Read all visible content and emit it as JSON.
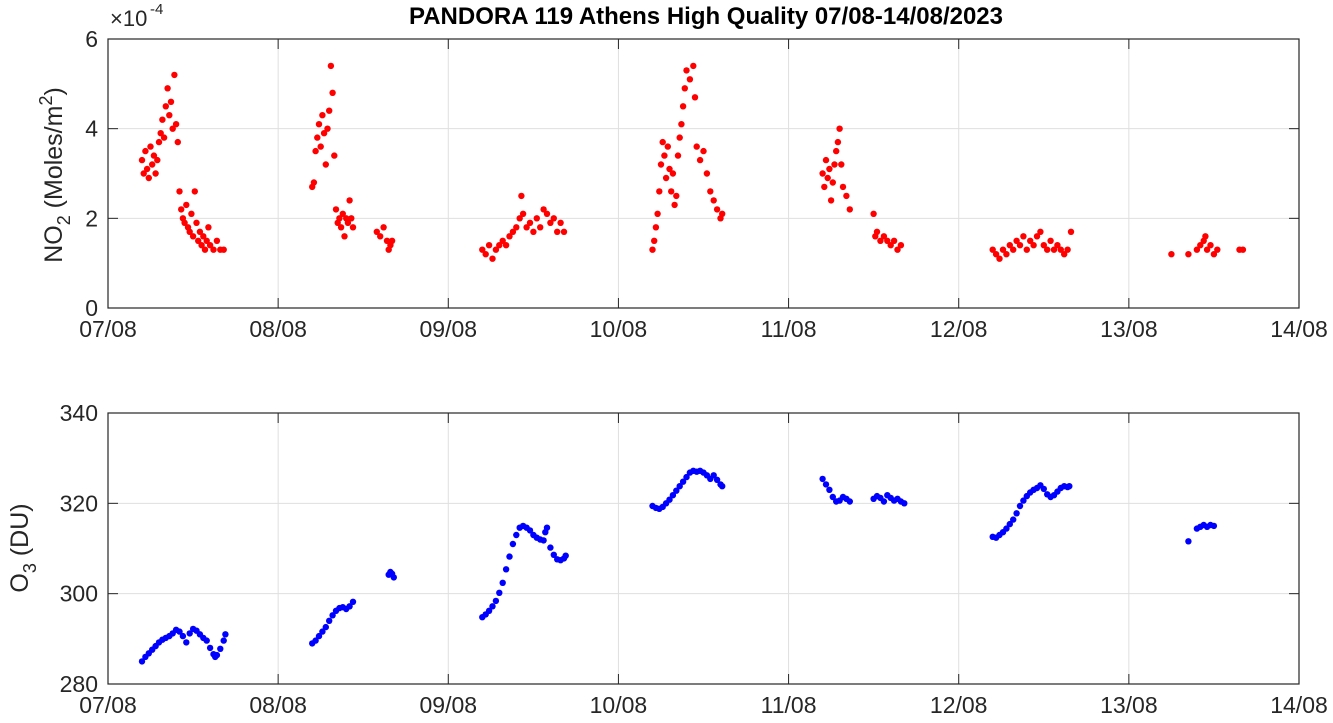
{
  "chart_data": [
    {
      "type": "scatter",
      "title": "PANDORA 119 Athens High Quality 07/08-14/08/2023",
      "ylabel_main": "NO",
      "ylabel_sub": "2",
      "ylabel_unit_pre": " (Moles/m",
      "ylabel_unit_sup": "2",
      "ylabel_unit_post": ")",
      "exponent_base": "×10",
      "exponent_power": "-4",
      "x_tick_labels": [
        "07/08",
        "08/08",
        "09/08",
        "10/08",
        "11/08",
        "12/08",
        "13/08",
        "14/08"
      ],
      "xlim": [
        0,
        7
      ],
      "ylim": [
        0,
        6
      ],
      "y_tick_labels": [
        "0",
        "2",
        "4",
        "6"
      ],
      "grid": true,
      "marker_color": "#ff0000",
      "x_units": "days since 07/08",
      "y_units": "×10^-4 Moles/m^2",
      "points": [
        [
          0.2,
          3.3
        ],
        [
          0.21,
          3.0
        ],
        [
          0.22,
          3.5
        ],
        [
          0.23,
          3.1
        ],
        [
          0.24,
          2.9
        ],
        [
          0.25,
          3.6
        ],
        [
          0.26,
          3.2
        ],
        [
          0.27,
          3.4
        ],
        [
          0.28,
          3.0
        ],
        [
          0.29,
          3.3
        ],
        [
          0.3,
          3.7
        ],
        [
          0.31,
          3.9
        ],
        [
          0.32,
          4.2
        ],
        [
          0.33,
          3.8
        ],
        [
          0.34,
          4.5
        ],
        [
          0.35,
          4.9
        ],
        [
          0.36,
          4.3
        ],
        [
          0.37,
          4.6
        ],
        [
          0.38,
          4.0
        ],
        [
          0.39,
          5.2
        ],
        [
          0.4,
          4.1
        ],
        [
          0.41,
          3.7
        ],
        [
          0.42,
          2.6
        ],
        [
          0.43,
          2.2
        ],
        [
          0.44,
          2.0
        ],
        [
          0.45,
          1.9
        ],
        [
          0.46,
          2.3
        ],
        [
          0.47,
          1.8
        ],
        [
          0.48,
          1.7
        ],
        [
          0.49,
          2.1
        ],
        [
          0.5,
          1.6
        ],
        [
          0.51,
          2.6
        ],
        [
          0.52,
          1.9
        ],
        [
          0.53,
          1.5
        ],
        [
          0.54,
          1.7
        ],
        [
          0.55,
          1.4
        ],
        [
          0.56,
          1.6
        ],
        [
          0.57,
          1.3
        ],
        [
          0.58,
          1.5
        ],
        [
          0.59,
          1.8
        ],
        [
          0.6,
          1.4
        ],
        [
          0.62,
          1.3
        ],
        [
          0.64,
          1.5
        ],
        [
          0.66,
          1.3
        ],
        [
          0.68,
          1.3
        ],
        [
          1.2,
          2.7
        ],
        [
          1.21,
          2.8
        ],
        [
          1.22,
          3.5
        ],
        [
          1.23,
          3.8
        ],
        [
          1.24,
          4.1
        ],
        [
          1.25,
          3.6
        ],
        [
          1.26,
          4.3
        ],
        [
          1.27,
          3.9
        ],
        [
          1.28,
          3.2
        ],
        [
          1.29,
          4.0
        ],
        [
          1.3,
          4.4
        ],
        [
          1.31,
          5.4
        ],
        [
          1.32,
          4.8
        ],
        [
          1.33,
          3.4
        ],
        [
          1.34,
          2.2
        ],
        [
          1.35,
          1.9
        ],
        [
          1.36,
          2.0
        ],
        [
          1.37,
          1.8
        ],
        [
          1.38,
          2.1
        ],
        [
          1.39,
          1.6
        ],
        [
          1.4,
          2.0
        ],
        [
          1.41,
          1.9
        ],
        [
          1.42,
          2.4
        ],
        [
          1.43,
          2.0
        ],
        [
          1.44,
          1.8
        ],
        [
          1.58,
          1.7
        ],
        [
          1.6,
          1.6
        ],
        [
          1.62,
          1.8
        ],
        [
          1.64,
          1.5
        ],
        [
          1.65,
          1.3
        ],
        [
          1.66,
          1.4
        ],
        [
          1.67,
          1.5
        ],
        [
          2.2,
          1.3
        ],
        [
          2.22,
          1.2
        ],
        [
          2.24,
          1.4
        ],
        [
          2.26,
          1.1
        ],
        [
          2.28,
          1.3
        ],
        [
          2.3,
          1.4
        ],
        [
          2.32,
          1.5
        ],
        [
          2.34,
          1.4
        ],
        [
          2.36,
          1.6
        ],
        [
          2.38,
          1.7
        ],
        [
          2.4,
          1.8
        ],
        [
          2.42,
          2.0
        ],
        [
          2.43,
          2.5
        ],
        [
          2.44,
          2.1
        ],
        [
          2.46,
          1.8
        ],
        [
          2.48,
          1.9
        ],
        [
          2.5,
          1.7
        ],
        [
          2.52,
          2.0
        ],
        [
          2.54,
          1.8
        ],
        [
          2.56,
          2.2
        ],
        [
          2.58,
          2.1
        ],
        [
          2.6,
          1.9
        ],
        [
          2.62,
          2.0
        ],
        [
          2.64,
          1.7
        ],
        [
          2.66,
          1.9
        ],
        [
          2.68,
          1.7
        ],
        [
          3.2,
          1.3
        ],
        [
          3.21,
          1.5
        ],
        [
          3.22,
          1.8
        ],
        [
          3.23,
          2.1
        ],
        [
          3.24,
          2.6
        ],
        [
          3.25,
          3.2
        ],
        [
          3.26,
          3.7
        ],
        [
          3.27,
          3.4
        ],
        [
          3.28,
          2.9
        ],
        [
          3.29,
          3.6
        ],
        [
          3.3,
          3.1
        ],
        [
          3.31,
          2.6
        ],
        [
          3.32,
          3.0
        ],
        [
          3.33,
          2.3
        ],
        [
          3.34,
          2.5
        ],
        [
          3.35,
          3.4
        ],
        [
          3.36,
          3.8
        ],
        [
          3.37,
          4.1
        ],
        [
          3.38,
          4.5
        ],
        [
          3.39,
          4.9
        ],
        [
          3.4,
          5.3
        ],
        [
          3.42,
          5.1
        ],
        [
          3.44,
          5.4
        ],
        [
          3.45,
          4.7
        ],
        [
          3.46,
          3.6
        ],
        [
          3.48,
          3.3
        ],
        [
          3.5,
          3.5
        ],
        [
          3.52,
          3.0
        ],
        [
          3.54,
          2.6
        ],
        [
          3.56,
          2.4
        ],
        [
          3.58,
          2.2
        ],
        [
          3.6,
          2.0
        ],
        [
          3.61,
          2.1
        ],
        [
          4.2,
          3.0
        ],
        [
          4.21,
          2.7
        ],
        [
          4.22,
          3.3
        ],
        [
          4.23,
          2.9
        ],
        [
          4.24,
          3.1
        ],
        [
          4.25,
          2.4
        ],
        [
          4.26,
          2.8
        ],
        [
          4.27,
          3.2
        ],
        [
          4.28,
          3.5
        ],
        [
          4.29,
          3.7
        ],
        [
          4.3,
          4.0
        ],
        [
          4.31,
          3.2
        ],
        [
          4.32,
          2.7
        ],
        [
          4.34,
          2.5
        ],
        [
          4.36,
          2.2
        ],
        [
          4.5,
          2.1
        ],
        [
          4.51,
          1.6
        ],
        [
          4.52,
          1.7
        ],
        [
          4.54,
          1.5
        ],
        [
          4.56,
          1.6
        ],
        [
          4.58,
          1.5
        ],
        [
          4.6,
          1.4
        ],
        [
          4.62,
          1.5
        ],
        [
          4.64,
          1.3
        ],
        [
          4.66,
          1.4
        ],
        [
          5.2,
          1.3
        ],
        [
          5.22,
          1.2
        ],
        [
          5.24,
          1.1
        ],
        [
          5.26,
          1.3
        ],
        [
          5.28,
          1.2
        ],
        [
          5.3,
          1.4
        ],
        [
          5.32,
          1.3
        ],
        [
          5.34,
          1.5
        ],
        [
          5.36,
          1.4
        ],
        [
          5.38,
          1.6
        ],
        [
          5.4,
          1.3
        ],
        [
          5.42,
          1.5
        ],
        [
          5.44,
          1.4
        ],
        [
          5.46,
          1.6
        ],
        [
          5.48,
          1.7
        ],
        [
          5.5,
          1.4
        ],
        [
          5.52,
          1.3
        ],
        [
          5.54,
          1.5
        ],
        [
          5.56,
          1.3
        ],
        [
          5.58,
          1.4
        ],
        [
          5.6,
          1.3
        ],
        [
          5.62,
          1.2
        ],
        [
          5.64,
          1.3
        ],
        [
          5.66,
          1.7
        ],
        [
          6.25,
          1.2
        ],
        [
          6.35,
          1.2
        ],
        [
          6.4,
          1.3
        ],
        [
          6.42,
          1.4
        ],
        [
          6.44,
          1.5
        ],
        [
          6.45,
          1.6
        ],
        [
          6.46,
          1.3
        ],
        [
          6.48,
          1.4
        ],
        [
          6.5,
          1.2
        ],
        [
          6.52,
          1.3
        ],
        [
          6.65,
          1.3
        ],
        [
          6.67,
          1.3
        ]
      ]
    },
    {
      "type": "scatter",
      "ylabel_main": "O",
      "ylabel_sub": "3",
      "ylabel_unit_pre": " (DU)",
      "x_tick_labels": [
        "07/08",
        "08/08",
        "09/08",
        "10/08",
        "11/08",
        "12/08",
        "13/08",
        "14/08"
      ],
      "xlim": [
        0,
        7
      ],
      "ylim": [
        280,
        340
      ],
      "y_tick_labels": [
        "280",
        "300",
        "320",
        "340"
      ],
      "grid": true,
      "marker_color": "#0000ff",
      "x_units": "days since 07/08",
      "y_units": "DU",
      "points": [
        [
          0.2,
          285.0
        ],
        [
          0.22,
          286.0
        ],
        [
          0.24,
          286.8
        ],
        [
          0.26,
          287.6
        ],
        [
          0.28,
          288.4
        ],
        [
          0.3,
          289.2
        ],
        [
          0.32,
          289.8
        ],
        [
          0.34,
          290.2
        ],
        [
          0.36,
          290.6
        ],
        [
          0.38,
          291.2
        ],
        [
          0.4,
          292.0
        ],
        [
          0.42,
          291.6
        ],
        [
          0.44,
          290.6
        ],
        [
          0.46,
          289.2
        ],
        [
          0.48,
          291.2
        ],
        [
          0.5,
          292.2
        ],
        [
          0.52,
          291.8
        ],
        [
          0.54,
          291.0
        ],
        [
          0.56,
          290.2
        ],
        [
          0.58,
          289.6
        ],
        [
          0.6,
          288.0
        ],
        [
          0.62,
          286.6
        ],
        [
          0.63,
          286.0
        ],
        [
          0.64,
          286.4
        ],
        [
          0.66,
          287.8
        ],
        [
          0.68,
          289.6
        ],
        [
          0.69,
          291.0
        ],
        [
          1.2,
          289.0
        ],
        [
          1.22,
          289.6
        ],
        [
          1.24,
          290.6
        ],
        [
          1.26,
          291.6
        ],
        [
          1.28,
          292.6
        ],
        [
          1.3,
          294.0
        ],
        [
          1.32,
          295.2
        ],
        [
          1.34,
          296.2
        ],
        [
          1.36,
          296.8
        ],
        [
          1.38,
          297.0
        ],
        [
          1.4,
          296.6
        ],
        [
          1.42,
          297.2
        ],
        [
          1.44,
          298.2
        ],
        [
          1.65,
          304.2
        ],
        [
          1.66,
          304.8
        ],
        [
          1.67,
          304.4
        ],
        [
          1.68,
          303.6
        ],
        [
          2.2,
          294.8
        ],
        [
          2.22,
          295.4
        ],
        [
          2.24,
          296.2
        ],
        [
          2.26,
          297.2
        ],
        [
          2.28,
          298.4
        ],
        [
          2.3,
          300.2
        ],
        [
          2.32,
          302.4
        ],
        [
          2.34,
          305.4
        ],
        [
          2.36,
          308.2
        ],
        [
          2.38,
          311.0
        ],
        [
          2.4,
          313.0
        ],
        [
          2.42,
          314.6
        ],
        [
          2.44,
          315.0
        ],
        [
          2.46,
          314.6
        ],
        [
          2.48,
          314.0
        ],
        [
          2.5,
          313.0
        ],
        [
          2.52,
          312.4
        ],
        [
          2.54,
          312.0
        ],
        [
          2.56,
          311.8
        ],
        [
          2.57,
          313.6
        ],
        [
          2.58,
          314.6
        ],
        [
          2.6,
          310.2
        ],
        [
          2.62,
          308.6
        ],
        [
          2.64,
          307.6
        ],
        [
          2.66,
          307.4
        ],
        [
          2.68,
          307.8
        ],
        [
          2.69,
          308.4
        ],
        [
          3.2,
          319.4
        ],
        [
          3.22,
          319.0
        ],
        [
          3.24,
          318.8
        ],
        [
          3.26,
          319.2
        ],
        [
          3.28,
          320.0
        ],
        [
          3.3,
          320.8
        ],
        [
          3.32,
          321.8
        ],
        [
          3.34,
          322.8
        ],
        [
          3.36,
          323.8
        ],
        [
          3.38,
          324.8
        ],
        [
          3.4,
          325.8
        ],
        [
          3.42,
          326.8
        ],
        [
          3.44,
          327.2
        ],
        [
          3.46,
          327.0
        ],
        [
          3.48,
          327.2
        ],
        [
          3.5,
          326.8
        ],
        [
          3.52,
          326.2
        ],
        [
          3.54,
          325.4
        ],
        [
          3.56,
          326.2
        ],
        [
          3.58,
          325.2
        ],
        [
          3.6,
          324.2
        ],
        [
          3.61,
          323.8
        ],
        [
          4.2,
          325.4
        ],
        [
          4.22,
          324.2
        ],
        [
          4.24,
          323.0
        ],
        [
          4.26,
          321.4
        ],
        [
          4.28,
          320.4
        ],
        [
          4.3,
          320.6
        ],
        [
          4.32,
          321.4
        ],
        [
          4.34,
          321.0
        ],
        [
          4.36,
          320.4
        ],
        [
          4.5,
          321.0
        ],
        [
          4.52,
          321.6
        ],
        [
          4.54,
          321.2
        ],
        [
          4.56,
          320.4
        ],
        [
          4.58,
          321.8
        ],
        [
          4.6,
          321.2
        ],
        [
          4.62,
          320.6
        ],
        [
          4.64,
          321.0
        ],
        [
          4.66,
          320.4
        ],
        [
          4.68,
          320.0
        ],
        [
          5.2,
          312.6
        ],
        [
          5.22,
          312.4
        ],
        [
          5.24,
          313.0
        ],
        [
          5.26,
          313.6
        ],
        [
          5.28,
          314.4
        ],
        [
          5.3,
          315.4
        ],
        [
          5.32,
          316.4
        ],
        [
          5.34,
          317.8
        ],
        [
          5.36,
          319.4
        ],
        [
          5.38,
          320.6
        ],
        [
          5.4,
          321.6
        ],
        [
          5.42,
          322.4
        ],
        [
          5.44,
          323.0
        ],
        [
          5.46,
          323.4
        ],
        [
          5.48,
          324.0
        ],
        [
          5.5,
          323.2
        ],
        [
          5.52,
          322.0
        ],
        [
          5.54,
          321.4
        ],
        [
          5.56,
          321.8
        ],
        [
          5.58,
          322.6
        ],
        [
          5.6,
          323.4
        ],
        [
          5.62,
          323.8
        ],
        [
          5.64,
          323.6
        ],
        [
          5.65,
          323.8
        ],
        [
          6.35,
          311.6
        ],
        [
          6.4,
          314.4
        ],
        [
          6.42,
          314.8
        ],
        [
          6.44,
          315.2
        ],
        [
          6.46,
          314.8
        ],
        [
          6.48,
          315.2
        ],
        [
          6.5,
          315.0
        ]
      ]
    }
  ]
}
